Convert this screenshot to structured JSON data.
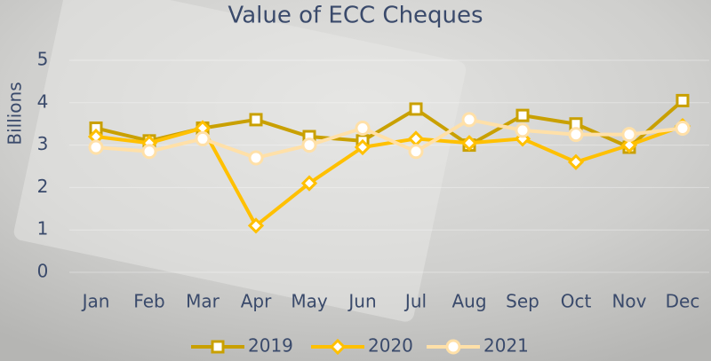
{
  "chart_data": {
    "type": "line",
    "title": "Value of ECC Cheques",
    "y_label": "Billions",
    "categories": [
      "Jan",
      "Feb",
      "Mar",
      "Apr",
      "May",
      "Jun",
      "Jul",
      "Aug",
      "Sep",
      "Oct",
      "Nov",
      "Dec"
    ],
    "series": [
      {
        "name": "2019",
        "color": "#c9a000",
        "marker": "square",
        "values": [
          3.4,
          3.1,
          3.4,
          3.6,
          3.2,
          3.1,
          3.85,
          3.0,
          3.7,
          3.5,
          2.95,
          4.05
        ]
      },
      {
        "name": "2020",
        "color": "#ffc000",
        "marker": "diamond",
        "values": [
          3.2,
          3.05,
          3.4,
          1.1,
          2.1,
          2.95,
          3.15,
          3.05,
          3.15,
          2.6,
          3.0,
          3.45
        ]
      },
      {
        "name": "2021",
        "color": "#ffe0a8",
        "marker": "circle",
        "values": [
          2.95,
          2.85,
          3.15,
          2.7,
          3.0,
          3.4,
          2.85,
          3.6,
          3.35,
          3.25,
          3.25,
          3.4
        ]
      }
    ],
    "ylim": [
      0,
      5
    ],
    "yticks": [
      0,
      1,
      2,
      3,
      4,
      5
    ],
    "grid": true,
    "legend": "bottom"
  }
}
